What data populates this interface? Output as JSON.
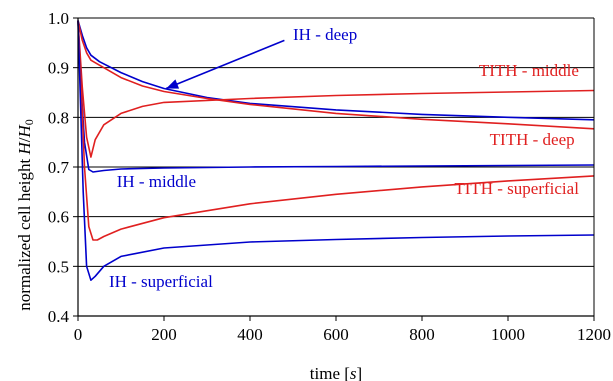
{
  "chart_data": {
    "type": "line",
    "xlabel": "time [s]",
    "ylabel": "normalized cell height H/H0",
    "xlim": [
      0,
      1200
    ],
    "ylim": [
      0.4,
      1.0
    ],
    "xticks": [
      "0",
      "200",
      "400",
      "600",
      "800",
      "1000",
      "1200"
    ],
    "yticks": [
      "0.4",
      "0.5",
      "0.6",
      "0.7",
      "0.8",
      "0.9",
      "1.0"
    ],
    "grid": "horizontal",
    "colors": {
      "IH": "#0000cc",
      "TITH": "#e02020",
      "grid": "#000000"
    },
    "series": [
      {
        "name": "IH - deep",
        "color": "#0000cc",
        "points": [
          [
            0,
            0.995
          ],
          [
            10,
            0.965
          ],
          [
            20,
            0.94
          ],
          [
            30,
            0.925
          ],
          [
            50,
            0.912
          ],
          [
            100,
            0.89
          ],
          [
            150,
            0.872
          ],
          [
            200,
            0.858
          ],
          [
            300,
            0.84
          ],
          [
            400,
            0.828
          ],
          [
            600,
            0.815
          ],
          [
            800,
            0.806
          ],
          [
            1000,
            0.8
          ],
          [
            1200,
            0.795
          ]
        ]
      },
      {
        "name": "TITH - middle",
        "color": "#e02020",
        "points": [
          [
            0,
            0.995
          ],
          [
            10,
            0.86
          ],
          [
            20,
            0.76
          ],
          [
            30,
            0.72
          ],
          [
            40,
            0.755
          ],
          [
            60,
            0.785
          ],
          [
            100,
            0.808
          ],
          [
            150,
            0.822
          ],
          [
            200,
            0.83
          ],
          [
            400,
            0.838
          ],
          [
            600,
            0.844
          ],
          [
            800,
            0.848
          ],
          [
            1000,
            0.851
          ],
          [
            1200,
            0.854
          ]
        ]
      },
      {
        "name": "TITH - deep",
        "color": "#e02020",
        "points": [
          [
            0,
            0.995
          ],
          [
            10,
            0.955
          ],
          [
            20,
            0.93
          ],
          [
            30,
            0.915
          ],
          [
            50,
            0.905
          ],
          [
            100,
            0.88
          ],
          [
            150,
            0.863
          ],
          [
            200,
            0.852
          ],
          [
            300,
            0.838
          ],
          [
            400,
            0.826
          ],
          [
            600,
            0.808
          ],
          [
            800,
            0.796
          ],
          [
            1000,
            0.787
          ],
          [
            1200,
            0.777
          ]
        ]
      },
      {
        "name": "IH - middle",
        "color": "#0000cc",
        "points": [
          [
            0,
            0.995
          ],
          [
            8,
            0.85
          ],
          [
            15,
            0.75
          ],
          [
            25,
            0.695
          ],
          [
            35,
            0.69
          ],
          [
            60,
            0.693
          ],
          [
            100,
            0.696
          ],
          [
            200,
            0.698
          ],
          [
            400,
            0.7
          ],
          [
            600,
            0.701
          ],
          [
            800,
            0.702
          ],
          [
            1000,
            0.703
          ],
          [
            1200,
            0.704
          ]
        ]
      },
      {
        "name": "TITH - superficial",
        "color": "#e02020",
        "points": [
          [
            0,
            0.995
          ],
          [
            8,
            0.85
          ],
          [
            15,
            0.7
          ],
          [
            25,
            0.58
          ],
          [
            35,
            0.553
          ],
          [
            45,
            0.553
          ],
          [
            60,
            0.56
          ],
          [
            100,
            0.575
          ],
          [
            200,
            0.598
          ],
          [
            400,
            0.626
          ],
          [
            600,
            0.645
          ],
          [
            800,
            0.66
          ],
          [
            1000,
            0.672
          ],
          [
            1200,
            0.682
          ]
        ]
      },
      {
        "name": "IH - superficial",
        "color": "#0000cc",
        "points": [
          [
            0,
            0.995
          ],
          [
            5,
            0.85
          ],
          [
            12,
            0.65
          ],
          [
            20,
            0.5
          ],
          [
            30,
            0.472
          ],
          [
            40,
            0.48
          ],
          [
            60,
            0.5
          ],
          [
            100,
            0.52
          ],
          [
            200,
            0.537
          ],
          [
            400,
            0.549
          ],
          [
            600,
            0.554
          ],
          [
            800,
            0.558
          ],
          [
            1000,
            0.561
          ],
          [
            1200,
            0.563
          ]
        ]
      }
    ],
    "annotations": [
      {
        "text": "IH - deep",
        "color": "#0000cc",
        "x": 500,
        "y": 0.956
      },
      {
        "text": "TITH - middle",
        "color": "#e02020",
        "x": 1165,
        "y": 0.883
      },
      {
        "text": "TITH - deep",
        "color": "#e02020",
        "x": 1155,
        "y": 0.744
      },
      {
        "text": "IH - middle",
        "color": "#0000cc",
        "x": 90,
        "y": 0.66
      },
      {
        "text": "TITH - superficial",
        "color": "#e02020",
        "x": 1165,
        "y": 0.646
      },
      {
        "text": "IH - superficial",
        "color": "#0000cc",
        "x": 72,
        "y": 0.458
      }
    ]
  }
}
